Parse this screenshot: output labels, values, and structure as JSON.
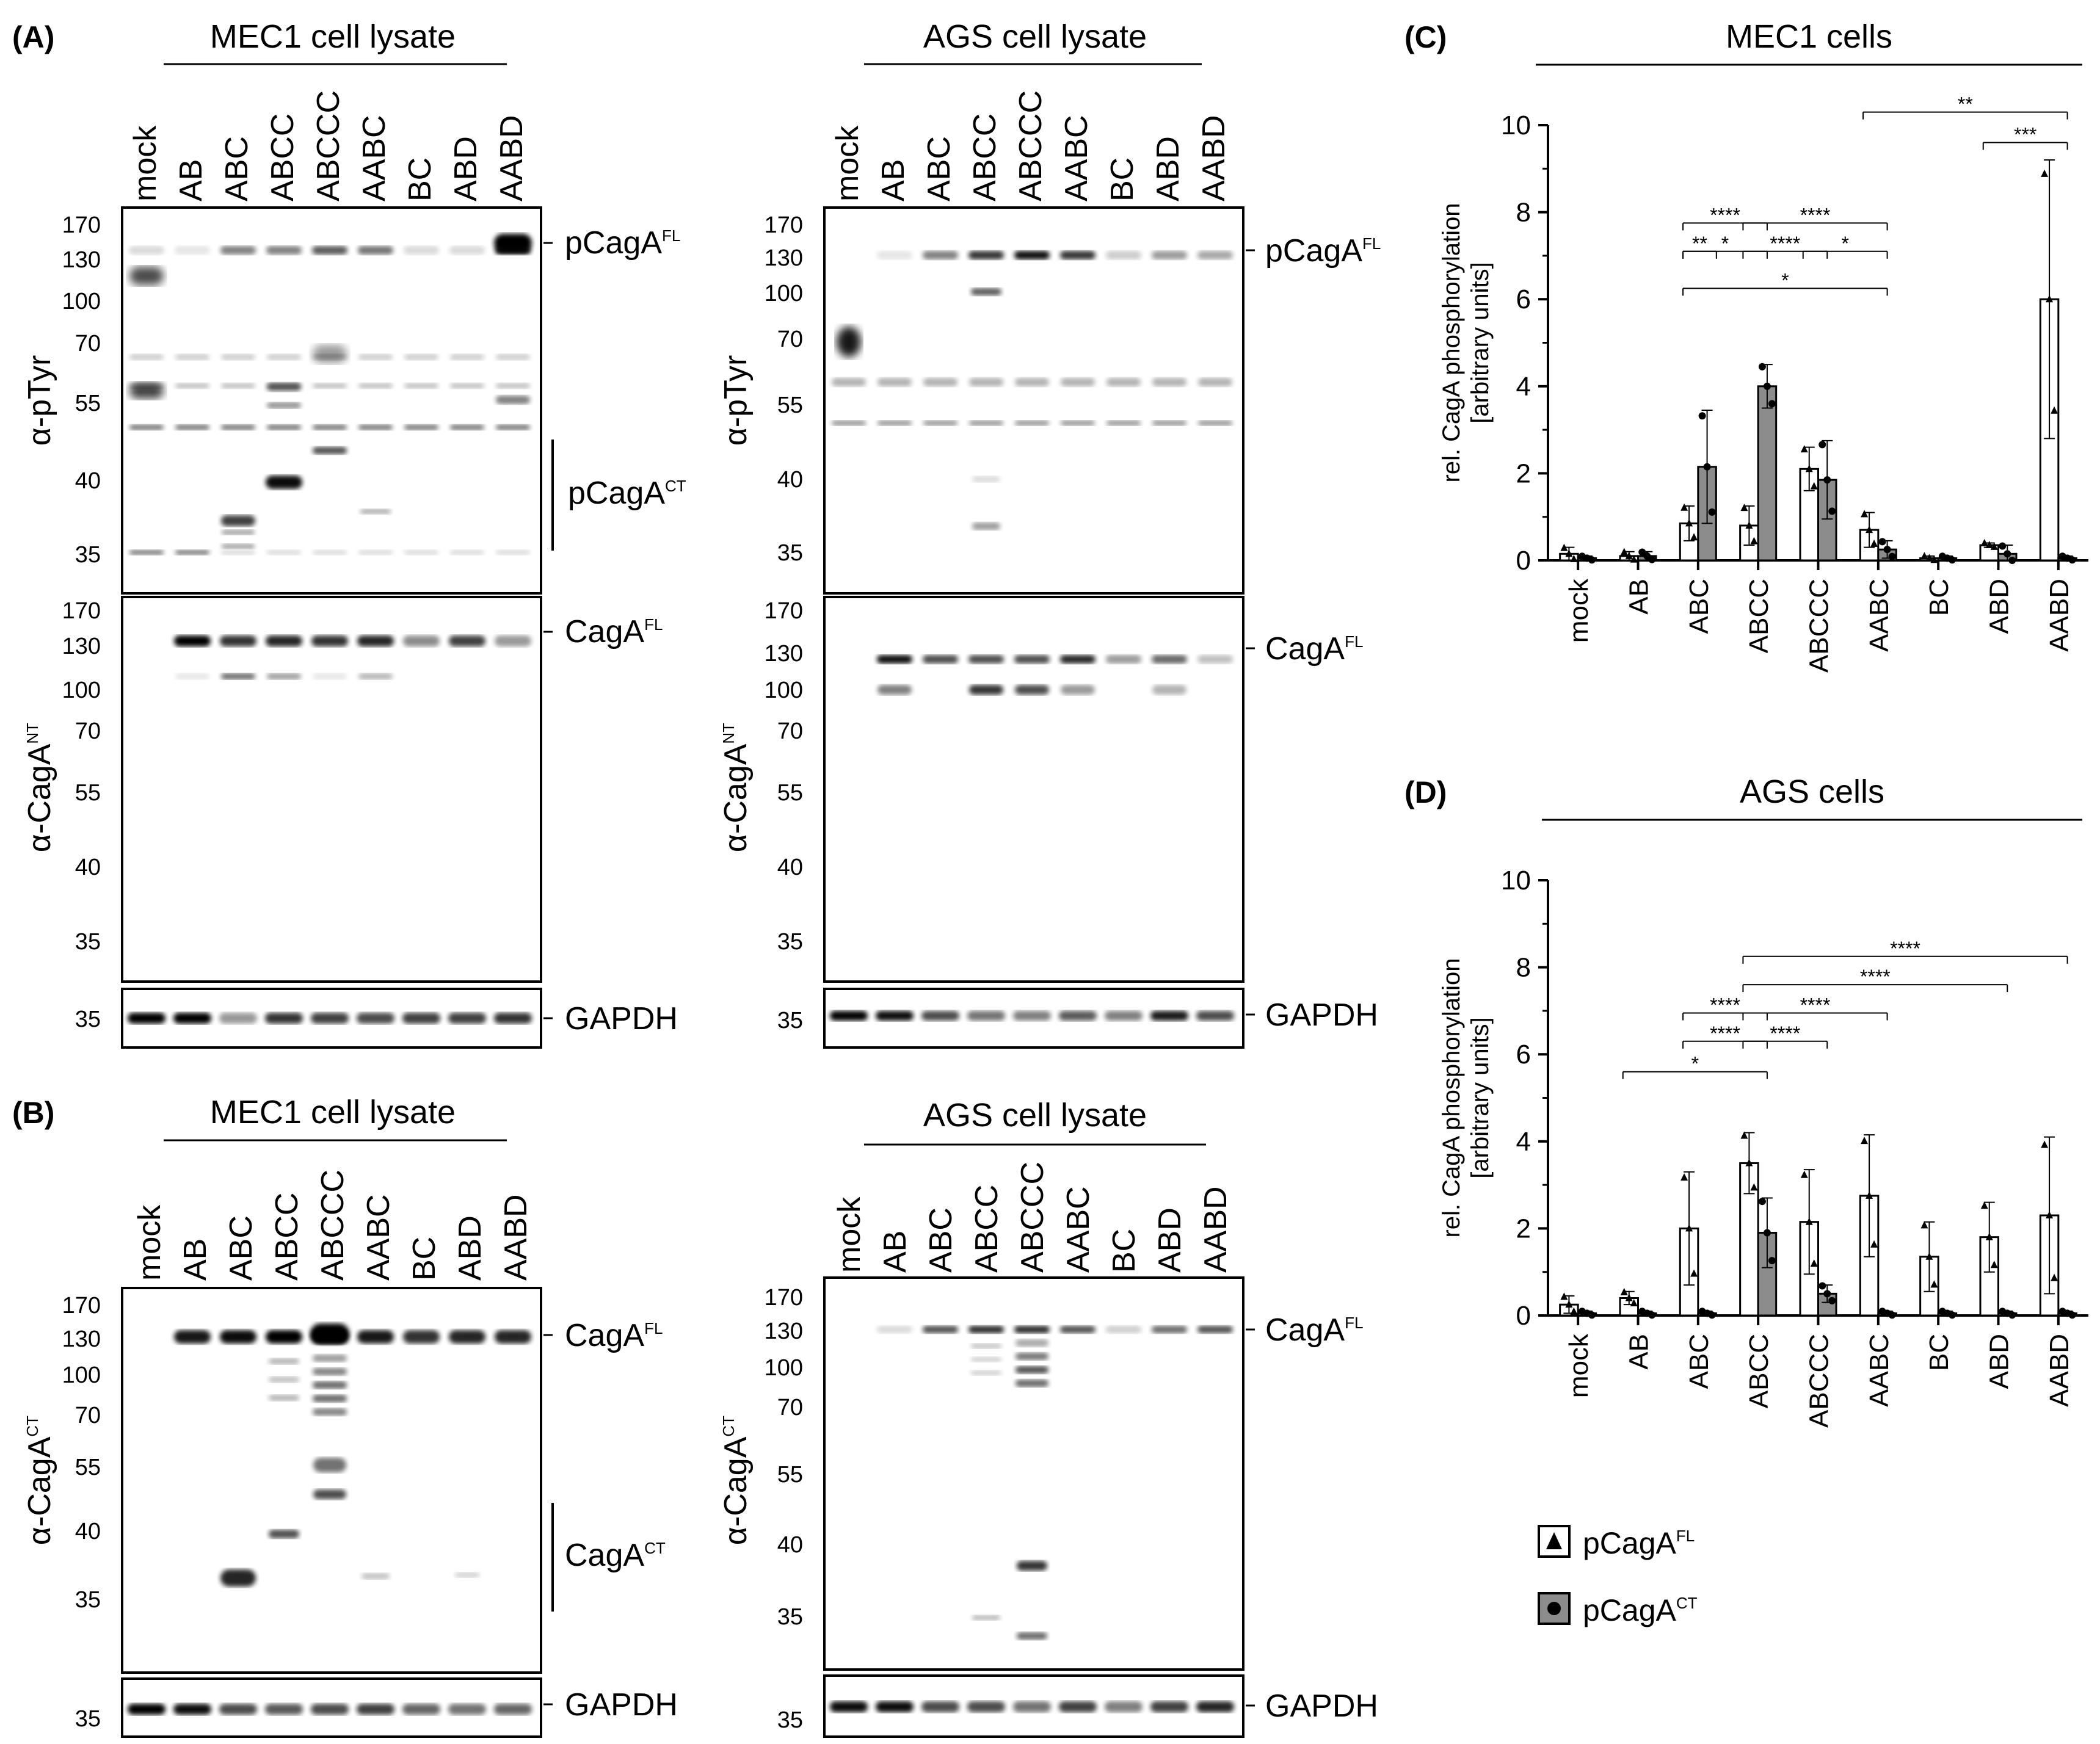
{
  "panel_labels": {
    "a": "(A)",
    "b": "(B)",
    "c": "(C)",
    "d": "(D)"
  },
  "panel_a": {
    "mec1": {
      "title": "MEC1 cell lysate",
      "lanes": [
        "mock",
        "AB",
        "ABC",
        "ABCC",
        "ABCCC",
        "AABC",
        "BC",
        "ABD",
        "AABD"
      ],
      "ptyr_antibody": "α-pTyr",
      "ptyr_markers": [
        "170",
        "130",
        "100",
        "70",
        "55",
        "40",
        "35"
      ],
      "pcaga_fl": "pCagA",
      "fl_sup": "FL",
      "pcaga_ct": "pCagA",
      "ct_sup": "CT",
      "ntblot_antibody": "α-CagA",
      "nt_sup": "NT",
      "nt_markers": [
        "170",
        "130",
        "100",
        "70",
        "55",
        "40",
        "35"
      ],
      "caga_fl": "CagA",
      "gapdh_marker": "35",
      "gapdh": "GAPDH"
    },
    "ags": {
      "title": "AGS cell lysate",
      "lanes": [
        "mock",
        "AB",
        "ABC",
        "ABCC",
        "ABCCC",
        "AABC",
        "BC",
        "ABD",
        "AABD"
      ],
      "ptyr_antibody": "α-pTyr",
      "ptyr_markers": [
        "170",
        "130",
        "100",
        "70",
        "55",
        "40",
        "35"
      ],
      "pcaga_fl": "pCagA",
      "fl_sup": "FL",
      "ntblot_antibody": "α-CagA",
      "nt_sup": "NT",
      "nt_markers": [
        "170",
        "130",
        "100",
        "70",
        "55",
        "40",
        "35"
      ],
      "caga_fl": "CagA",
      "gapdh_marker": "35",
      "gapdh": "GAPDH"
    }
  },
  "panel_b": {
    "mec1": {
      "title": "MEC1 cell lysate",
      "lanes": [
        "mock",
        "AB",
        "ABC",
        "ABCC",
        "ABCCC",
        "AABC",
        "BC",
        "ABD",
        "AABD"
      ],
      "antibody": "α-CagA",
      "ab_sup": "CT",
      "markers": [
        "170",
        "130",
        "100",
        "70",
        "55",
        "40",
        "35"
      ],
      "caga_fl": "CagA",
      "fl_sup": "FL",
      "caga_ct": "CagA",
      "ct_sup": "CT",
      "gapdh_marker": "35",
      "gapdh": "GAPDH"
    },
    "ags": {
      "title": "AGS cell lysate",
      "lanes": [
        "mock",
        "AB",
        "ABC",
        "ABCC",
        "ABCCC",
        "AABC",
        "BC",
        "ABD",
        "AABD"
      ],
      "antibody": "α-CagA",
      "ab_sup": "CT",
      "markers": [
        "170",
        "130",
        "100",
        "70",
        "55",
        "40",
        "35"
      ],
      "caga_fl": "CagA",
      "fl_sup": "FL",
      "gapdh_marker": "35",
      "gapdh": "GAPDH"
    }
  },
  "chart_data": [
    {
      "type": "bar",
      "title": "MEC1 cells",
      "ylabel_line1": "rel. CagA phosphorylation",
      "ylabel_line2": "[arbitrary units]",
      "ylim": [
        0,
        10
      ],
      "yticks": [
        "0",
        "2",
        "4",
        "6",
        "8",
        "10"
      ],
      "categories": [
        "mock",
        "AB",
        "ABC",
        "ABCC",
        "ABCCC",
        "AABC",
        "BC",
        "ABD",
        "AABD"
      ],
      "series": [
        {
          "name": "pCagA FL",
          "values": [
            0.15,
            0.1,
            0.85,
            0.8,
            2.1,
            0.7,
            0.05,
            0.35,
            6.0
          ],
          "errors": [
            0.15,
            0.1,
            0.4,
            0.45,
            0.5,
            0.4,
            0.05,
            0.05,
            3.2
          ]
        },
        {
          "name": "pCagA CT",
          "values": [
            0.05,
            0.1,
            2.15,
            4.0,
            1.85,
            0.25,
            0.05,
            0.15,
            0.05
          ],
          "errors": [
            0.05,
            0.1,
            1.3,
            0.5,
            0.9,
            0.2,
            0.05,
            0.2,
            0.05
          ]
        }
      ],
      "comparisons": [
        {
          "label": "**",
          "from": "AABC",
          "to": "AABD",
          "level": 10.3
        },
        {
          "label": "***",
          "from": "ABD",
          "to": "AABD",
          "level": 9.6
        },
        {
          "label": "****",
          "from": "ABC",
          "to": "ABCC",
          "level": 7.75
        },
        {
          "label": "****",
          "from": "ABCC",
          "to": "AABC",
          "level": 7.75
        },
        {
          "label": "**",
          "from": "ABC",
          "to": "ABC",
          "level": 7.1
        },
        {
          "label": "*",
          "from": "ABC",
          "to": "ABCC",
          "level": 7.1
        },
        {
          "label": "****",
          "from": "ABCC",
          "to": "ABCCC",
          "level": 7.1
        },
        {
          "label": "*",
          "from": "ABCCC",
          "to": "AABC",
          "level": 7.1
        },
        {
          "label": "*",
          "from": "ABC",
          "to": "AABC",
          "level": 6.25
        }
      ]
    },
    {
      "type": "bar",
      "title": "AGS cells",
      "ylabel_line1": "rel. CagA phosphorylation",
      "ylabel_line2": "[arbitrary units]",
      "ylim": [
        0,
        10
      ],
      "yticks": [
        "0",
        "2",
        "4",
        "6",
        "8",
        "10"
      ],
      "categories": [
        "mock",
        "AB",
        "ABC",
        "ABCC",
        "ABCCC",
        "AABC",
        "BC",
        "ABD",
        "AABD"
      ],
      "series": [
        {
          "name": "pCagA FL",
          "values": [
            0.25,
            0.4,
            2.0,
            3.5,
            2.15,
            2.75,
            1.35,
            1.8,
            2.3
          ],
          "errors": [
            0.2,
            0.15,
            1.3,
            0.7,
            1.2,
            1.4,
            0.8,
            0.8,
            1.8
          ]
        },
        {
          "name": "pCagA CT",
          "values": [
            0.05,
            0.05,
            0.05,
            1.9,
            0.5,
            0.05,
            0.05,
            0.05,
            0.05
          ],
          "errors": [
            0.05,
            0.05,
            0.05,
            0.8,
            0.2,
            0.05,
            0.05,
            0.05,
            0.05
          ]
        }
      ],
      "comparisons": [
        {
          "label": "****",
          "from": "ABCC",
          "to": "AABD",
          "level": 8.25
        },
        {
          "label": "****",
          "from": "ABCC",
          "to": "ABD",
          "level": 7.6
        },
        {
          "label": "****",
          "from": "ABC",
          "to": "ABCC",
          "level": 6.95
        },
        {
          "label": "****",
          "from": "ABCC",
          "to": "AABC",
          "level": 6.95
        },
        {
          "label": "****",
          "from": "ABC",
          "to": "ABCC",
          "level": 6.3
        },
        {
          "label": "****",
          "from": "ABCC",
          "to": "ABCCC",
          "level": 6.3
        },
        {
          "label": "*",
          "from": "AB",
          "to": "ABCC",
          "level": 5.6
        }
      ]
    }
  ],
  "legend": {
    "fl": "pCagA",
    "fl_sup": "FL",
    "ct": "pCagA",
    "ct_sup": "CT"
  }
}
